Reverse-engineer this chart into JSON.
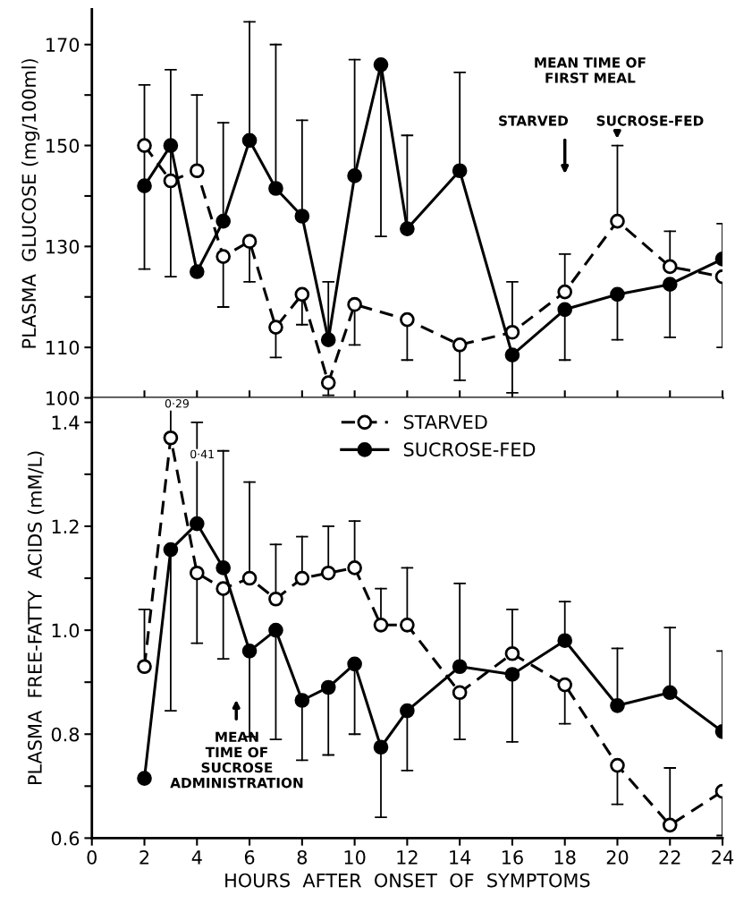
{
  "chart_data": [
    {
      "type": "line",
      "ylabel": "PLASMA  GLUCOSE (mg/100ml)",
      "x": [
        2,
        3,
        4,
        5,
        6,
        7,
        8,
        9,
        10,
        11,
        12,
        14,
        16,
        18,
        20,
        22,
        24
      ],
      "xlim": [
        0,
        24
      ],
      "xticks": [
        0,
        2,
        4,
        6,
        8,
        10,
        12,
        14,
        16,
        18,
        20,
        22,
        24
      ],
      "tick_labels": "y",
      "ylim": [
        100,
        177
      ],
      "yticks": [
        100,
        110,
        {
          "value": 120,
          "label": null
        },
        130,
        {
          "value": 140,
          "label": null
        },
        150,
        {
          "value": 160,
          "label": null
        },
        170
      ],
      "marker": "circle",
      "grid": false,
      "legend": false,
      "series": [
        {
          "color": "#000000",
          "line_style": "dashed",
          "x": [
            2,
            3,
            4,
            5,
            6,
            7,
            8,
            9,
            10,
            12,
            14,
            16,
            18,
            20,
            22,
            24
          ],
          "values": [
            150,
            143,
            145,
            128,
            131,
            114,
            120.5,
            103,
            118.5,
            115.5,
            110.5,
            113,
            121,
            135,
            126,
            124
          ],
          "errors": [
            null,
            [
              124,
              165
            ],
            [
              145,
              160
            ],
            [
              118,
              128
            ],
            [
              123,
              131
            ],
            [
              108,
              114
            ],
            [
              114.5,
              120.5
            ],
            [
              100.5,
              103
            ],
            [
              110.5,
              118.5
            ],
            [
              107.5,
              115.5
            ],
            [
              103.5,
              110.5
            ],
            [
              113,
              123
            ],
            [
              121,
              128.5
            ],
            [
              135,
              150
            ],
            [
              126,
              133
            ],
            [
              110,
              124
            ]
          ]
        },
        {
          "color": "#000000",
          "line_style": "solid",
          "values": [
            142,
            150,
            125,
            135,
            151,
            141.5,
            136,
            111.5,
            144,
            166,
            133.5,
            145,
            108.5,
            117.5,
            120.5,
            122.5,
            127.5
          ],
          "errors": [
            [
              125.5,
              162
            ],
            null,
            null,
            [
              135,
              154.5
            ],
            [
              151,
              174.5
            ],
            [
              141.5,
              170
            ],
            [
              136,
              155
            ],
            [
              111.5,
              123
            ],
            [
              144,
              167
            ],
            [
              132,
              166
            ],
            [
              133.5,
              152
            ],
            [
              145,
              164.5
            ],
            [
              101,
              108.5
            ],
            [
              107.5,
              117.5
            ],
            [
              111.5,
              120.5
            ],
            [
              112,
              122.5
            ],
            [
              127.5,
              134.5
            ]
          ]
        }
      ],
      "annotations": [
        "MEAN TIME OF\nFIRST MEAL",
        "STARVED",
        "SUCROSE-FED"
      ]
    },
    {
      "type": "line",
      "ylabel": "PLASMA  FREE-FATTY  ACIDS (mM/L)",
      "xlabel": "HOURS  AFTER  ONSET  OF  SYMPTOMS",
      "x": [
        2,
        3,
        4,
        5,
        6,
        7,
        8,
        9,
        10,
        11,
        12,
        14,
        16,
        18,
        20,
        22,
        24
      ],
      "xlim": [
        0,
        24
      ],
      "xticks": [
        0,
        2,
        4,
        6,
        8,
        10,
        12,
        14,
        16,
        18,
        20,
        22,
        24
      ],
      "ylim": [
        0.6,
        1.447
      ],
      "yticks": [
        0.6,
        {
          "value": 0.7,
          "label": null
        },
        0.8,
        {
          "value": 0.9,
          "label": null
        },
        {
          "value": 1.0,
          "label": "1.0"
        },
        {
          "value": 1.1,
          "label": null
        },
        1.2,
        {
          "value": 1.3,
          "label": null
        },
        1.4
      ],
      "marker": "circle",
      "grid": false,
      "legend": "top",
      "series": [
        {
          "name": "STARVED",
          "color": "#000000",
          "line_style": "dashed",
          "values": [
            0.93,
            1.37,
            1.11,
            1.08,
            1.1,
            1.06,
            1.1,
            1.11,
            1.12,
            1.01,
            1.01,
            0.88,
            0.955,
            0.895,
            0.74,
            0.625,
            0.69
          ],
          "errors": [
            [
              0.93,
              1.04
            ],
            [
              1.37,
              1.43
            ],
            [
              0.975,
              1.11
            ],
            [
              0.945,
              1.08
            ],
            [
              1.1,
              1.285
            ],
            [
              1.06,
              1.165
            ],
            [
              1.1,
              1.18
            ],
            [
              1.11,
              1.2
            ],
            [
              1.12,
              1.21
            ],
            [
              1.01,
              1.08
            ],
            [
              1.01,
              1.12
            ],
            [
              0.79,
              0.88
            ],
            [
              0.955,
              1.04
            ],
            [
              0.82,
              0.895
            ],
            [
              0.665,
              0.74
            ],
            [
              0.625,
              0.735
            ],
            [
              0.605,
              0.69
            ]
          ]
        },
        {
          "name": "SUCROSE-FED",
          "color": "#000000",
          "line_style": "solid",
          "values": [
            0.715,
            1.155,
            1.205,
            1.12,
            0.96,
            1.0,
            0.865,
            0.89,
            0.935,
            0.775,
            0.845,
            0.93,
            0.915,
            0.98,
            0.855,
            0.88,
            0.805
          ],
          "errors": [
            null,
            [
              0.845,
              1.155
            ],
            [
              1.205,
              1.4
            ],
            [
              1.12,
              1.345
            ],
            [
              0.795,
              0.96
            ],
            [
              0.79,
              1.0
            ],
            [
              0.75,
              0.865
            ],
            [
              0.76,
              0.89
            ],
            [
              0.8,
              0.935
            ],
            [
              0.64,
              0.775
            ],
            [
              0.73,
              0.845
            ],
            [
              0.93,
              1.09
            ],
            [
              0.785,
              0.915
            ],
            [
              0.98,
              1.055
            ],
            [
              0.855,
              0.965
            ],
            [
              0.88,
              1.005
            ],
            [
              0.805,
              0.96
            ]
          ]
        }
      ],
      "annotations": [
        "0·29",
        "0·41",
        "MEAN\nTIME OF\nSUCROSE\nADMINISTRATION"
      ]
    }
  ]
}
